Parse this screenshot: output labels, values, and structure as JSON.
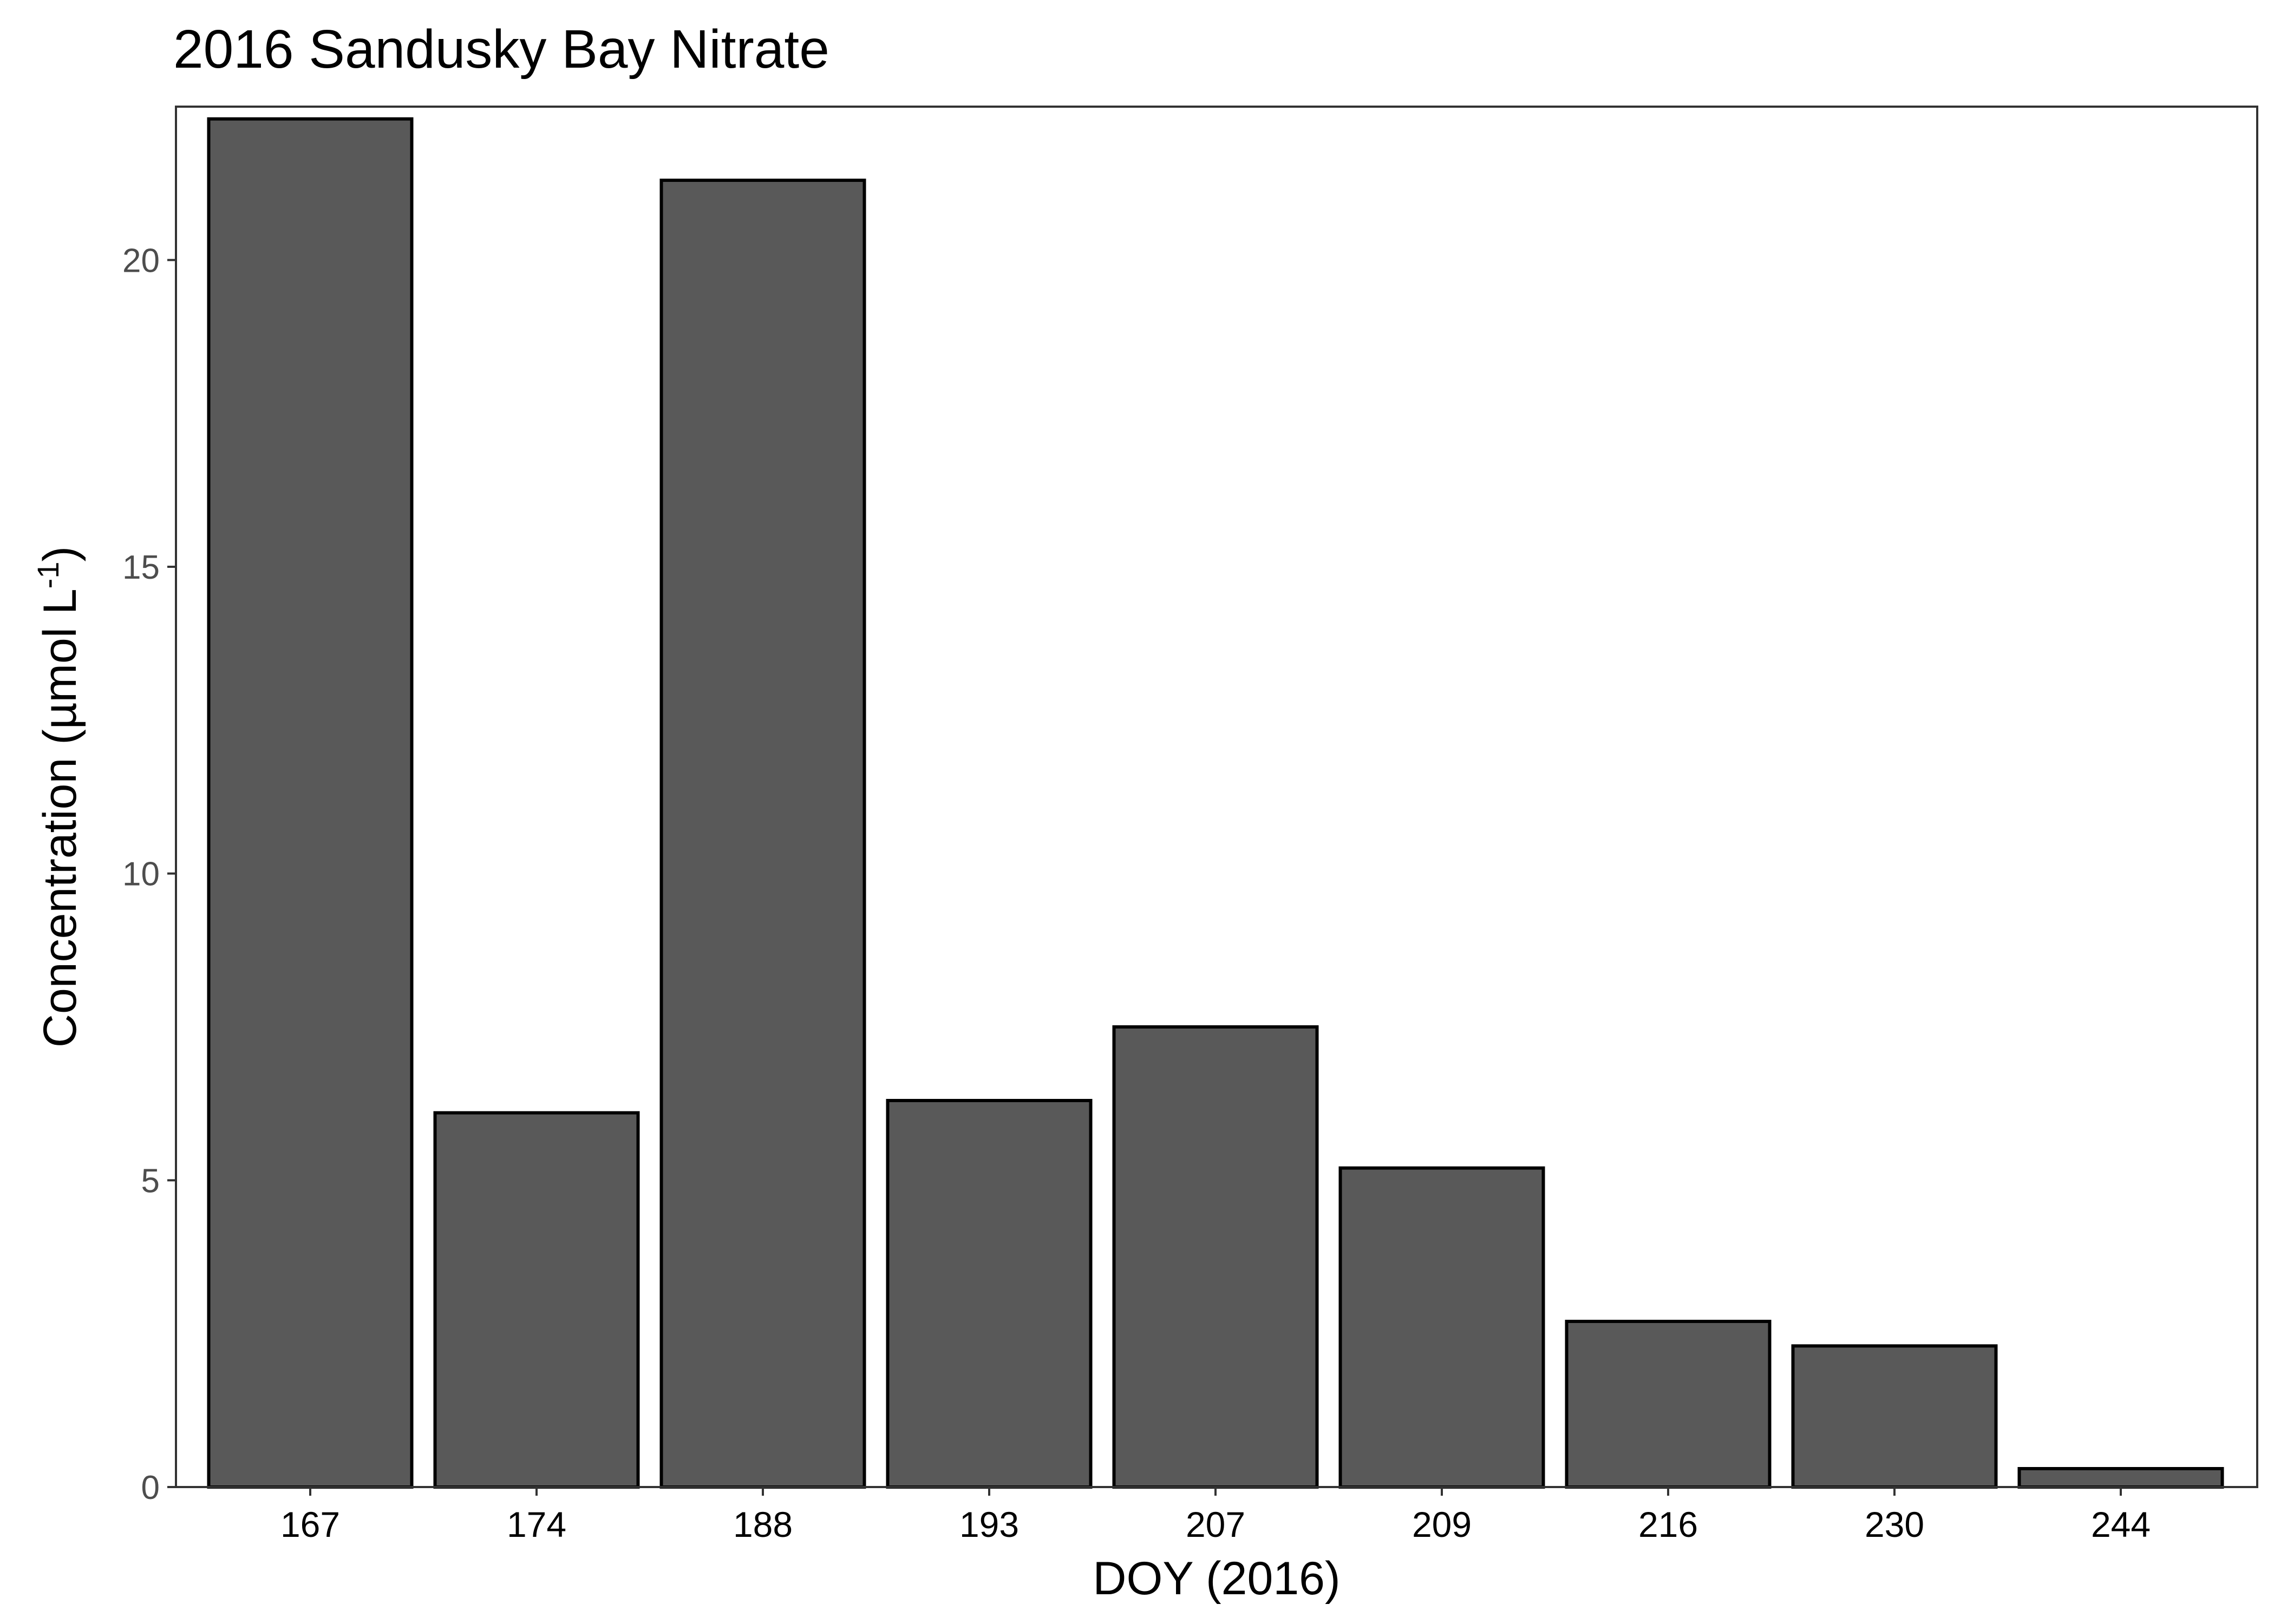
{
  "chart_data": {
    "type": "bar",
    "title": "2016 Sandusky Bay Nitrate",
    "xlabel": "DOY (2016)",
    "ylabel": {
      "main": "Concentration (µmol L",
      "superscript": "-1",
      "close": ")"
    },
    "categories": [
      "167",
      "174",
      "188",
      "193",
      "207",
      "209",
      "216",
      "230",
      "244"
    ],
    "values": [
      22.3,
      6.1,
      21.3,
      6.3,
      7.5,
      5.2,
      2.7,
      2.3,
      0.3
    ],
    "ylim": [
      0,
      22.5
    ],
    "yticks": [
      0,
      5,
      10,
      15,
      20
    ],
    "grid": false,
    "legend": "none",
    "colors": {
      "bar_fill": "#595959",
      "bar_stroke": "#000000",
      "panel_border": "#333333"
    }
  }
}
